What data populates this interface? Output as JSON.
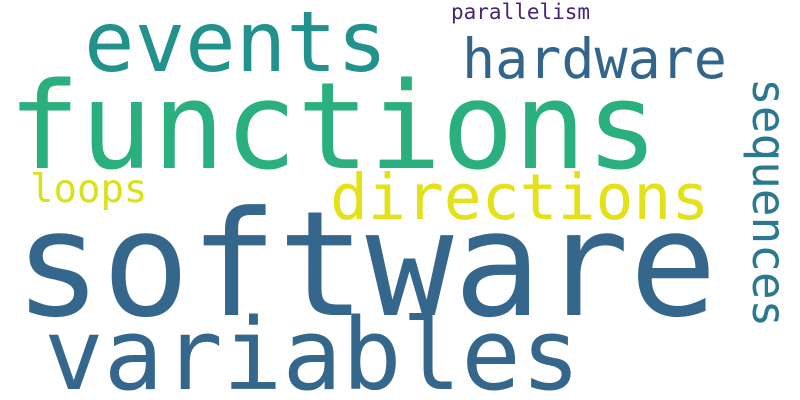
{
  "words": {
    "software": {
      "text": "software",
      "color": "#35678d"
    },
    "functions": {
      "text": "functions",
      "color": "#2aaf7f"
    },
    "variables": {
      "text": "variables",
      "color": "#35678d"
    },
    "events": {
      "text": "events",
      "color": "#21928c"
    },
    "directions": {
      "text": "directions",
      "color": "#e4e119"
    },
    "hardware": {
      "text": "hardware",
      "color": "#33658c"
    },
    "sequences": {
      "text": "sequences",
      "color": "#2a798e"
    },
    "loops": {
      "text": "loops",
      "color": "#d8e219"
    },
    "parallelism": {
      "text": "parallelism",
      "color": "#482475"
    }
  }
}
